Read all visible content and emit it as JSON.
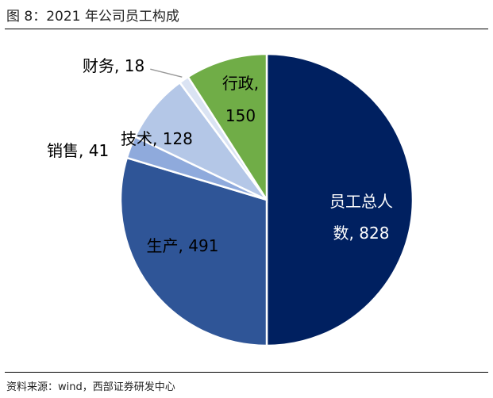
{
  "figure": {
    "title": "图 8：2021 年公司员工构成",
    "source": "资料来源：wind，西部证券研发中心"
  },
  "chart_data": {
    "type": "pie",
    "title": "",
    "total": {
      "label": "员工总人数",
      "value": 828,
      "display_line1": "员工总人",
      "display_line2": "数, 828"
    },
    "slices": [
      {
        "name": "生产",
        "value": 491,
        "color": "#2F5597",
        "label_line1": "生产, 491",
        "label_line2": ""
      },
      {
        "name": "销售",
        "value": 41,
        "color": "#8FAADC",
        "label_line1": "销售, 41",
        "label_line2": ""
      },
      {
        "name": "技术",
        "value": 128,
        "color": "#B4C7E7",
        "label_line1": "技术, 128",
        "label_line2": ""
      },
      {
        "name": "财务",
        "value": 18,
        "color": "#DAE3F3",
        "label_line1": "财务, 18",
        "label_line2": ""
      },
      {
        "name": "行政",
        "value": 150,
        "color": "#70AD47",
        "label_line1": "行政,",
        "label_line2": "150"
      }
    ],
    "colors": {
      "total": "#002060",
      "outline": "#ffffff",
      "leader": "#999999"
    }
  }
}
